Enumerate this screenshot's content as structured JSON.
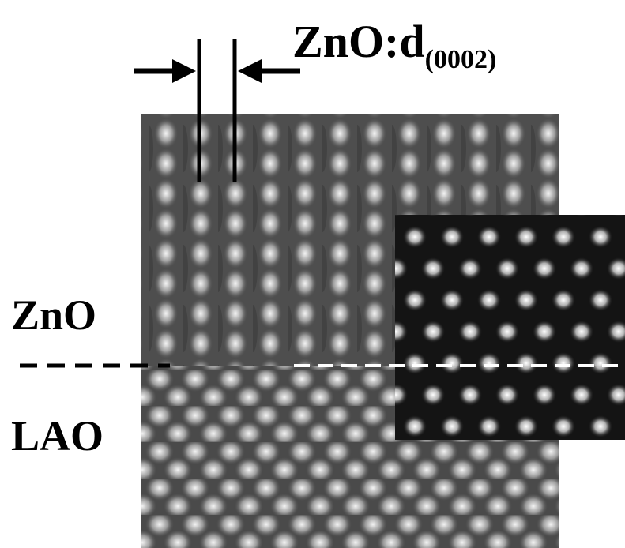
{
  "title": {
    "main": "ZnO:d",
    "subscript": "(0002)"
  },
  "labels": {
    "upper": "ZnO",
    "lower": "LAO"
  }
}
